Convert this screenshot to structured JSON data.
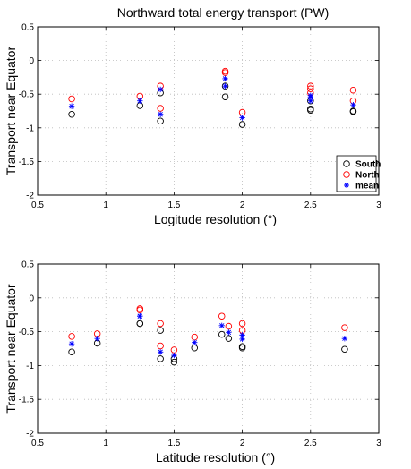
{
  "title": "Northward total energy transport (PW)",
  "colors": {
    "South": "#000000",
    "North": "#ff0000",
    "mean": "#0000ff",
    "grid": "#bbbbbb"
  },
  "chart_data": [
    {
      "type": "scatter",
      "xlabel": "Logitude resolution (°)",
      "ylabel": "Transport near Equator",
      "xlim": [
        0.5,
        3
      ],
      "ylim": [
        -2,
        0.5
      ],
      "xticks": [
        "0.5",
        "1",
        "1.5",
        "2",
        "2.5",
        "3"
      ],
      "yticks": [
        "-2",
        "-1.5",
        "-1",
        "-0.5",
        "0",
        "0.5"
      ],
      "grid": true,
      "legend": {
        "position": "lower-right",
        "entries": [
          "South",
          "North",
          "mean"
        ]
      },
      "series": [
        {
          "name": "South",
          "marker": "circle",
          "x": [
            0.75,
            1.25,
            1.4,
            1.4,
            1.875,
            1.875,
            2.0,
            2.5,
            2.5,
            2.5,
            2.8125,
            2.8125
          ],
          "y": [
            -0.8,
            -0.67,
            -0.48,
            -0.9,
            -0.54,
            -0.38,
            -0.95,
            -0.72,
            -0.74,
            -0.6,
            -0.75,
            -0.76
          ]
        },
        {
          "name": "North",
          "marker": "circle",
          "x": [
            0.75,
            1.25,
            1.4,
            1.4,
            1.875,
            1.875,
            2.0,
            2.5,
            2.5,
            2.5,
            2.8125,
            2.8125
          ],
          "y": [
            -0.57,
            -0.53,
            -0.38,
            -0.71,
            -0.16,
            -0.18,
            -0.77,
            -0.38,
            -0.42,
            -0.48,
            -0.44,
            -0.6
          ]
        },
        {
          "name": "mean",
          "marker": "star",
          "x": [
            0.75,
            1.25,
            1.4,
            1.4,
            1.875,
            1.875,
            2.0,
            2.5,
            2.5,
            2.5,
            2.8125
          ],
          "y": [
            -0.68,
            -0.6,
            -0.43,
            -0.8,
            -0.27,
            -0.38,
            -0.85,
            -0.52,
            -0.6,
            -0.55,
            -0.66
          ]
        }
      ]
    },
    {
      "type": "scatter",
      "xlabel": "Latitude resolution (°)",
      "ylabel": "Transport near Equator",
      "xlim": [
        0.5,
        3
      ],
      "ylim": [
        -2,
        0.5
      ],
      "xticks": [
        "0.5",
        "1",
        "1.5",
        "2",
        "2.5",
        "3"
      ],
      "yticks": [
        "-2",
        "-1.5",
        "-1",
        "-0.5",
        "0",
        "0.5"
      ],
      "grid": true,
      "series": [
        {
          "name": "South",
          "marker": "circle",
          "x": [
            0.75,
            0.9375,
            1.25,
            1.25,
            1.4,
            1.4,
            1.5,
            1.5,
            1.65,
            1.85,
            1.9,
            2.0,
            2.0,
            2.75
          ],
          "y": [
            -0.8,
            -0.67,
            -0.38,
            -0.38,
            -0.48,
            -0.9,
            -0.9,
            -0.95,
            -0.74,
            -0.54,
            -0.6,
            -0.72,
            -0.74,
            -0.76
          ]
        },
        {
          "name": "North",
          "marker": "circle",
          "x": [
            0.75,
            0.9375,
            1.25,
            1.25,
            1.4,
            1.4,
            1.5,
            1.65,
            1.85,
            1.9,
            2.0,
            2.0,
            2.75
          ],
          "y": [
            -0.57,
            -0.53,
            -0.16,
            -0.18,
            -0.38,
            -0.71,
            -0.77,
            -0.58,
            -0.27,
            -0.42,
            -0.38,
            -0.48,
            -0.44
          ]
        },
        {
          "name": "mean",
          "marker": "star",
          "x": [
            0.75,
            0.9375,
            1.25,
            1.25,
            1.4,
            1.5,
            1.65,
            1.85,
            1.9,
            2.0,
            2.0,
            2.75
          ],
          "y": [
            -0.68,
            -0.6,
            -0.27,
            -0.27,
            -0.8,
            -0.85,
            -0.66,
            -0.41,
            -0.51,
            -0.55,
            -0.61,
            -0.6
          ]
        }
      ]
    }
  ]
}
